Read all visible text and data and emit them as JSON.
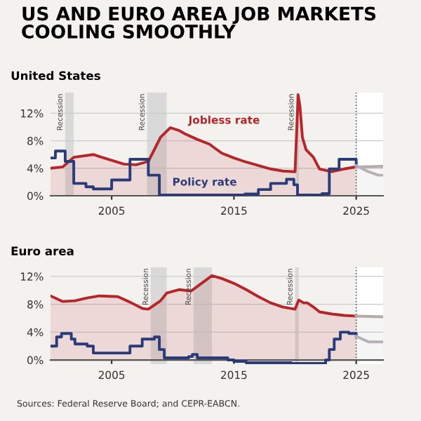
{
  "chart_data": [
    {
      "type": "line",
      "title": "US AND EURO AREA JOB MARKETS COOLING SMOOTHLY",
      "subtitle": "United States",
      "xlim": [
        2000,
        2027.2
      ],
      "xticks": [
        2005,
        2015,
        2025
      ],
      "ylim": [
        0,
        15
      ],
      "yticks": [
        {
          "value": 0,
          "label": "0%"
        },
        {
          "value": 4,
          "label": "4%"
        },
        {
          "value": 8,
          "label": "8%"
        },
        {
          "value": 12,
          "label": "12%"
        }
      ],
      "grid": "y",
      "legend": false,
      "bands": [
        {
          "axis": "x",
          "from": 2025,
          "to": 2027.2,
          "color": "#ffffff"
        },
        {
          "axis": "x",
          "from": 2001.2,
          "to": 2001.9,
          "label": "Recession",
          "color": "#d9d9d9"
        },
        {
          "axis": "x",
          "from": 2007.9,
          "to": 2009.5,
          "label": "Recession",
          "color": "#d9d9d9"
        },
        {
          "axis": "x",
          "from": 2020.1,
          "to": 2020.3,
          "label": "Recession",
          "color": "#d9d9d9"
        }
      ],
      "ref_lines": [
        {
          "axis": "x",
          "value": 2025,
          "color": "#555555",
          "line_style": "dotted"
        }
      ],
      "series": [
        {
          "name": "Jobless rate",
          "type": "area",
          "color": "#b5262b",
          "x": [
            2000,
            2001,
            2001.9,
            2003.5,
            2004,
            2006,
            2007,
            2008,
            2009,
            2009.8,
            2010.5,
            2011,
            2012,
            2013,
            2014,
            2015,
            2016,
            2017,
            2018,
            2019,
            2020.0,
            2020.25,
            2020.4,
            2020.6,
            2020.9,
            2021.5,
            2022,
            2023,
            2024,
            2025
          ],
          "values": [
            4.0,
            4.2,
            5.6,
            6.0,
            5.7,
            4.6,
            4.5,
            5.0,
            8.5,
            9.9,
            9.5,
            9.0,
            8.2,
            7.5,
            6.2,
            5.5,
            4.9,
            4.4,
            3.9,
            3.6,
            3.5,
            14.7,
            13,
            8.5,
            6.7,
            5.6,
            3.9,
            3.5,
            3.9,
            4.2
          ]
        },
        {
          "type": "area",
          "color": "#b7aaaa",
          "x": [
            2025,
            2027.2
          ],
          "values": [
            4.2,
            4.3
          ]
        },
        {
          "name": "Policy rate",
          "type": "step",
          "color": "#2b3a78",
          "x": [
            2000,
            2000.4,
            2001,
            2001.2,
            2001.9,
            2002.9,
            2003.5,
            2004.5,
            2005,
            2006.5,
            2007.6,
            2008,
            2008.9,
            2015.9,
            2017,
            2018,
            2019.3,
            2019.9,
            2020.2,
            2022.2,
            2022.8,
            2023.6,
            2024.7,
            2025
          ],
          "values": [
            5.5,
            6.5,
            6.5,
            5.0,
            1.8,
            1.3,
            1.0,
            1.0,
            2.3,
            5.3,
            5.3,
            3.0,
            0.1,
            0.25,
            0.9,
            1.8,
            2.4,
            1.6,
            0.1,
            0.3,
            3.9,
            5.3,
            5.3,
            4.4
          ]
        },
        {
          "color": "#b8b0b8",
          "x": [
            2025,
            2026,
            2026.8,
            2027.2
          ],
          "values": [
            4.4,
            3.5,
            3.0,
            3.0
          ]
        }
      ]
    },
    {
      "type": "line",
      "subtitle": "Euro area",
      "xlim": [
        2000,
        2027.2
      ],
      "xticks": [
        2005,
        2015,
        2025
      ],
      "ylim": [
        -0.6,
        13.3
      ],
      "yticks": [
        {
          "value": 0,
          "label": "0%"
        },
        {
          "value": 4,
          "label": "4%"
        },
        {
          "value": 8,
          "label": "8%"
        },
        {
          "value": 12,
          "label": "12%"
        }
      ],
      "grid": "y",
      "legend": false,
      "bands": [
        {
          "axis": "x",
          "from": 2025,
          "to": 2027.2,
          "color": "#ffffff"
        },
        {
          "axis": "x",
          "from": 2008.2,
          "to": 2009.5,
          "label": "Recession",
          "color": "#d9d9d9"
        },
        {
          "axis": "x",
          "from": 2011.7,
          "to": 2013.2,
          "label": "Recession",
          "color": "#d9d9d9"
        },
        {
          "axis": "x",
          "from": 2020.0,
          "to": 2020.3,
          "label": "Recession",
          "color": "#d9d9d9"
        }
      ],
      "ref_lines": [
        {
          "axis": "x",
          "value": 2025,
          "color": "#555555",
          "line_style": "dotted"
        }
      ],
      "annotations": [
        "Sources: Federal Reserve Board; and CEPR-EABCN."
      ],
      "series": [
        {
          "type": "area",
          "color": "#b5262b",
          "x": [
            2000,
            2001,
            2002,
            2003,
            2004,
            2005.5,
            2006.5,
            2007.5,
            2008,
            2009,
            2009.5,
            2010.5,
            2011.5,
            2012.5,
            2013.2,
            2014,
            2015,
            2016,
            2017,
            2018,
            2019,
            2020.0,
            2020.3,
            2020.7,
            2021,
            2021.5,
            2022,
            2023,
            2024,
            2025
          ],
          "values": [
            9.2,
            8.4,
            8.5,
            8.9,
            9.2,
            9.1,
            8.3,
            7.4,
            7.3,
            8.5,
            9.6,
            10.1,
            9.9,
            11.2,
            12.1,
            11.7,
            11.0,
            10.1,
            9.1,
            8.2,
            7.6,
            7.3,
            8.6,
            8.2,
            8.2,
            7.6,
            6.9,
            6.6,
            6.4,
            6.3
          ]
        },
        {
          "type": "area",
          "color": "#b7aaaa",
          "x": [
            2025,
            2027.2
          ],
          "values": [
            6.3,
            6.2
          ]
        },
        {
          "type": "step",
          "color": "#2b3a78",
          "x": [
            2000,
            2000.5,
            2000.9,
            2001.3,
            2001.7,
            2002,
            2003,
            2003.5,
            2005.9,
            2006.5,
            2007.5,
            2008.5,
            2008.9,
            2009.3,
            2011.3,
            2011.6,
            2012,
            2014.5,
            2015,
            2016,
            2019.7,
            2022.5,
            2022.8,
            2023.2,
            2023.7,
            2024.4,
            2025
          ],
          "values": [
            2.0,
            3.3,
            3.8,
            3.8,
            3.0,
            2.3,
            2.0,
            1.0,
            1.0,
            2.0,
            3.0,
            3.3,
            1.5,
            0.3,
            0.5,
            0.8,
            0.3,
            0,
            -0.2,
            -0.4,
            -0.5,
            0,
            1.5,
            3.0,
            4.0,
            3.8,
            3.4
          ]
        },
        {
          "color": "#b8b0b8",
          "x": [
            2025,
            2026,
            2027.2
          ],
          "values": [
            3.4,
            2.6,
            2.6
          ]
        }
      ]
    }
  ]
}
